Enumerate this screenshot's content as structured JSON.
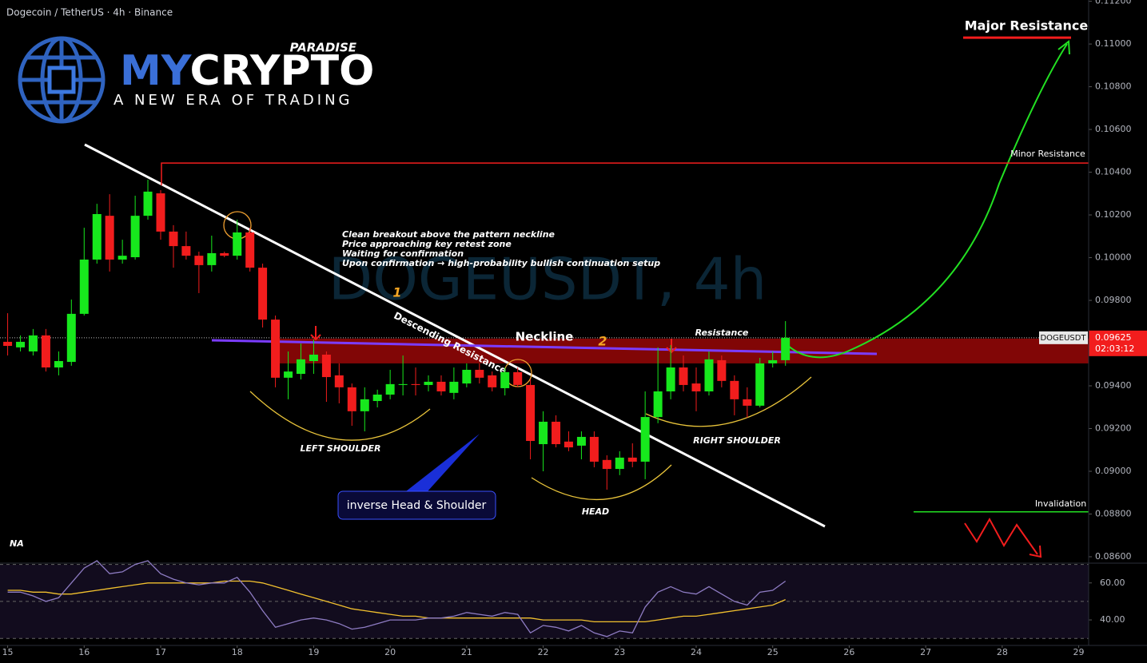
{
  "chart_data": {
    "type": "candlestick",
    "title": "Dogecoin / TetherUS · 4h · Binance",
    "watermark": "DOGEUSDT, 4h",
    "logo": {
      "tag": "PARADISE",
      "name_part1": "MY",
      "name_part2": "CRYPTO",
      "slogan": "A NEW ERA OF TRADING"
    },
    "x": [
      15,
      15.167,
      15.333,
      15.5,
      15.667,
      15.833,
      16,
      16.167,
      16.333,
      16.5,
      16.667,
      16.833,
      17,
      17.167,
      17.333,
      17.5,
      17.667,
      17.833,
      18,
      18.167,
      18.333,
      18.5,
      18.667,
      18.833,
      19,
      19.167,
      19.333,
      19.5,
      19.667,
      19.833,
      20,
      20.167,
      20.333,
      20.5,
      20.667,
      20.833,
      21,
      21.167,
      21.333,
      21.5,
      21.667,
      21.833,
      22,
      22.167,
      22.333,
      22.5,
      22.667,
      22.833,
      23,
      23.167,
      23.333,
      23.5,
      23.667,
      23.833,
      24,
      24.167,
      24.333,
      24.5,
      24.667,
      24.833,
      25,
      25.167
    ],
    "open": [
      0.09606,
      0.0958,
      0.09561,
      0.09636,
      0.09486,
      0.09512,
      0.09737,
      0.09991,
      0.10196,
      0.09991,
      0.10002,
      0.10196,
      0.10301,
      0.10122,
      0.10054,
      0.10009,
      0.09965,
      0.10021,
      0.10009,
      0.10118,
      0.09953,
      0.0971,
      0.09438,
      0.09456,
      0.09516,
      0.09546,
      0.09449,
      0.09393,
      0.09281,
      0.09329,
      0.09359,
      0.09404,
      0.09408,
      0.09404,
      0.09419,
      0.09367,
      0.09411,
      0.09475,
      0.09449,
      0.09389,
      0.09464,
      0.09404,
      0.09127,
      0.09232,
      0.09139,
      0.0912,
      0.09161,
      0.09053,
      0.09011,
      0.09064,
      0.09045,
      0.09254,
      0.09374,
      0.09486,
      0.09411,
      0.09374,
      0.0952,
      0.09423,
      0.09337,
      0.09307,
      0.09505,
      0.0952
    ],
    "high": [
      0.0974,
      0.09636,
      0.09666,
      0.09666,
      0.09561,
      0.09804,
      0.1014,
      0.10252,
      0.10297,
      0.10084,
      0.1029,
      0.10365,
      0.10316,
      0.10152,
      0.10122,
      0.10028,
      0.10103,
      0.10028,
      0.10178,
      0.1014,
      0.09972,
      0.09729,
      0.09561,
      0.09598,
      0.09617,
      0.09561,
      0.09505,
      0.09411,
      0.09393,
      0.09382,
      0.09475,
      0.09542,
      0.09486,
      0.09449,
      0.09449,
      0.09486,
      0.09505,
      0.09505,
      0.09467,
      0.09486,
      0.09486,
      0.0943,
      0.09281,
      0.09262,
      0.09187,
      0.09187,
      0.09187,
      0.09075,
      0.09094,
      0.09131,
      0.09374,
      0.0958,
      0.09591,
      0.09542,
      0.09486,
      0.09561,
      0.09542,
      0.09449,
      0.09393,
      0.09531,
      0.09561,
      0.09703
    ],
    "low": [
      0.09542,
      0.09561,
      0.09542,
      0.09467,
      0.09449,
      0.09494,
      0.09729,
      0.09972,
      0.09935,
      0.09972,
      0.09991,
      0.10178,
      0.10084,
      0.09953,
      0.09991,
      0.09834,
      0.09935,
      0.10002,
      0.09991,
      0.09935,
      0.09673,
      0.09393,
      0.09337,
      0.0943,
      0.09456,
      0.09325,
      0.09318,
      0.09213,
      0.09187,
      0.09299,
      0.09337,
      0.09355,
      0.09355,
      0.09374,
      0.09355,
      0.09337,
      0.09393,
      0.09411,
      0.09374,
      0.09355,
      0.09393,
      0.09056,
      0.09,
      0.09112,
      0.09094,
      0.09056,
      0.09019,
      0.08914,
      0.08982,
      0.09019,
      0.08963,
      0.09225,
      0.09337,
      0.09374,
      0.09281,
      0.09355,
      0.09393,
      0.09262,
      0.09251,
      0.09299,
      0.09486,
      0.09494
    ],
    "close": [
      0.09587,
      0.09606,
      0.09636,
      0.09486,
      0.09516,
      0.09737,
      0.09991,
      0.10204,
      0.09991,
      0.10009,
      0.10196,
      0.10309,
      0.10122,
      0.10054,
      0.10009,
      0.09965,
      0.10021,
      0.10009,
      0.10118,
      0.09953,
      0.0971,
      0.09438,
      0.09467,
      0.09524,
      0.09546,
      0.09441,
      0.09393,
      0.09281,
      0.09337,
      0.09359,
      0.09408,
      0.09408,
      0.09404,
      0.09419,
      0.09374,
      0.09419,
      0.09475,
      0.09438,
      0.09393,
      0.09464,
      0.09404,
      0.09142,
      0.09232,
      0.09127,
      0.09112,
      0.09161,
      0.09045,
      0.09011,
      0.09064,
      0.09045,
      0.09254,
      0.09374,
      0.09486,
      0.09404,
      0.09374,
      0.09524,
      0.09423,
      0.09337,
      0.09307,
      0.09505,
      0.0952,
      0.09625
    ],
    "up_color": "#17e81d",
    "down_color": "#f21d1d",
    "xlim": [
      14.9,
      29.13
    ],
    "xticks": [
      15,
      16,
      17,
      18,
      19,
      20,
      21,
      22,
      23,
      24,
      25,
      26,
      27,
      28,
      29
    ],
    "ylim": [
      0.0857,
      0.11206
    ],
    "yticks": [
      {
        "value": 0.086,
        "label": "0.08600"
      },
      {
        "value": 0.088,
        "label": "0.08800"
      },
      {
        "value": 0.09,
        "label": "0.09000"
      },
      {
        "value": 0.092,
        "label": "0.09200"
      },
      {
        "value": 0.094,
        "label": "0.09400"
      },
      {
        "value": 0.096,
        "label": "0.09600"
      },
      {
        "value": 0.098,
        "label": "0.09800"
      },
      {
        "value": 0.1,
        "label": "0.10000"
      },
      {
        "value": 0.102,
        "label": "0.10200"
      },
      {
        "value": 0.104,
        "label": "0.10400"
      },
      {
        "value": 0.106,
        "label": "0.10600"
      },
      {
        "value": 0.108,
        "label": "0.10800"
      },
      {
        "value": 0.11,
        "label": "0.11000"
      },
      {
        "value": 0.112,
        "label": "0.11200"
      }
    ],
    "price_tag": {
      "symbol": "DOGEUSDT",
      "value": 0.09625,
      "countdown": "02:03:12"
    },
    "levels": {
      "major_resistance": {
        "label": "Major Resistance",
        "value": 0.1103
      },
      "minor_resistance": {
        "label": "Minor Resistance",
        "value": 0.10443
      },
      "invalidation": {
        "label": "Invalidation",
        "value": 0.0881
      },
      "retest_zone": [
        0.09505,
        0.09621
      ]
    },
    "annotations": {
      "notes": [
        "Clean breakout above the pattern neckline",
        "Price approaching key retest zone",
        "Waiting for confirmation",
        "Upon confirmation → high-probability bullish continuation setup"
      ],
      "point_1": "1",
      "point_2": "2",
      "descending": "Descending Resistance",
      "neckline": "Neckline",
      "resistance": "Resistance",
      "left_shoulder": "LEFT SHOULDER",
      "head": "HEAD",
      "right_shoulder": "RIGHT SHOULDER",
      "pattern": "inverse Head & Shoulder",
      "na": "NA"
    },
    "rsi": {
      "values": [
        55,
        55,
        53,
        50,
        52,
        60,
        68,
        72,
        65,
        66,
        70,
        72,
        65,
        62,
        60,
        59,
        60,
        60,
        63,
        55,
        45,
        36,
        38,
        40,
        41,
        40,
        38,
        35,
        36,
        38,
        40,
        40,
        40,
        41,
        41,
        42,
        44,
        43,
        42,
        44,
        43,
        33,
        37,
        36,
        34,
        37,
        33,
        31,
        34,
        33,
        47,
        55,
        58,
        55,
        54,
        58,
        54,
        50,
        48,
        55,
        56,
        61
      ],
      "ma": [
        56,
        56,
        55,
        55,
        54,
        54,
        55,
        56,
        57,
        58,
        59,
        60,
        60,
        60,
        60,
        60,
        60,
        61,
        61,
        61,
        60,
        58,
        56,
        54,
        52,
        50,
        48,
        46,
        45,
        44,
        43,
        42,
        42,
        41,
        41,
        41,
        41,
        41,
        41,
        41,
        41,
        41,
        40,
        40,
        40,
        40,
        39,
        39,
        39,
        39,
        39,
        40,
        41,
        42,
        42,
        43,
        44,
        45,
        46,
        47,
        48,
        51
      ],
      "color": "#8e7cc3",
      "ma_color": "#f2c12e",
      "ylim": [
        26.2,
        70.7
      ],
      "yticks": [
        {
          "value": 40,
          "label": "40.00"
        },
        {
          "value": 60,
          "label": "60.00"
        }
      ],
      "bands": [
        30,
        50,
        70
      ]
    }
  }
}
